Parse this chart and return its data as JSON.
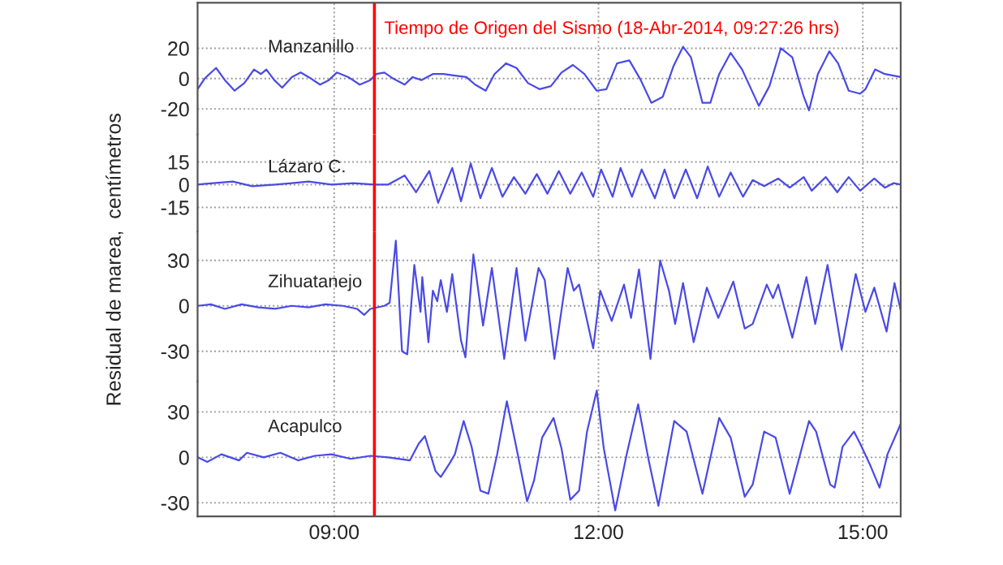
{
  "chart_data": [
    {
      "type": "line",
      "ylabel": "Residual de marea,  centímetros",
      "annotations": [
        "Manzanillo"
      ],
      "xlim": [
        7.45,
        15.43
      ],
      "xticks": [
        {
          "value": 9,
          "label": null
        },
        {
          "value": 12,
          "label": null
        },
        {
          "value": 15,
          "label": null
        }
      ],
      "ylim": [
        -37,
        50
      ],
      "yticks": [
        -20,
        0,
        20
      ],
      "tick_labels": "y",
      "grid": true,
      "ref_lines": [
        {
          "axis": "x",
          "value": 9.457,
          "label": "Tiempo de Origen del Sismo (18-Abr-2014, 09:27:26 hrs)",
          "color": "#ff0000"
        }
      ],
      "series": [
        {
          "color": "#4a4ae6",
          "x": [
            7.45,
            7.53,
            7.66,
            7.76,
            7.87,
            7.98,
            8.09,
            8.17,
            8.23,
            8.32,
            8.41,
            8.52,
            8.62,
            8.71,
            8.84,
            8.94,
            9.03,
            9.16,
            9.29,
            9.41,
            9.48,
            9.57,
            9.67,
            9.8,
            9.89,
            9.99,
            10.12,
            10.24,
            10.37,
            10.5,
            10.6,
            10.72,
            10.82,
            10.95,
            11.07,
            11.2,
            11.33,
            11.46,
            11.58,
            11.71,
            11.84,
            11.98,
            12.09,
            12.21,
            12.35,
            12.48,
            12.6,
            12.73,
            12.85,
            12.96,
            13.05,
            13.18,
            13.27,
            13.37,
            13.5,
            13.63,
            13.82,
            13.94,
            14.07,
            14.2,
            14.33,
            14.39,
            14.49,
            14.62,
            14.72,
            14.84,
            14.97,
            15.03,
            15.14,
            15.25,
            15.43
          ],
          "values": [
            -7,
            0,
            7,
            -1,
            -8,
            -3,
            6,
            3,
            6,
            -1,
            -6,
            1,
            4,
            1,
            -4,
            -1,
            4,
            1,
            -4,
            -1,
            3,
            4,
            0,
            -4,
            1,
            -1,
            3,
            3,
            2,
            1,
            -4,
            -8,
            3,
            10,
            7,
            -3,
            -7,
            -5,
            4,
            9,
            3,
            -8,
            -7,
            10,
            12,
            -1,
            -16,
            -12,
            8,
            21,
            14,
            -16,
            -16,
            3,
            17,
            6,
            -18,
            -5,
            20,
            14,
            -12,
            -21,
            3,
            18,
            10,
            -8,
            -10,
            -7,
            6,
            3,
            1
          ]
        }
      ]
    },
    {
      "type": "line",
      "annotations": [
        "Lázaro C."
      ],
      "xlim": [
        7.45,
        15.43
      ],
      "xticks": [
        {
          "value": 9,
          "label": null
        },
        {
          "value": 12,
          "label": null
        },
        {
          "value": 15,
          "label": null
        }
      ],
      "ylim": [
        -31,
        33
      ],
      "yticks": [
        -15,
        0,
        15
      ],
      "tick_labels": "y",
      "grid": true,
      "ref_lines": [
        {
          "axis": "x",
          "value": 9.457,
          "color": "#ff0000"
        }
      ],
      "series": [
        {
          "color": "#4a4ae6",
          "x": [
            7.45,
            7.63,
            7.85,
            8.07,
            8.33,
            8.52,
            8.71,
            8.97,
            9.22,
            9.45,
            9.61,
            9.8,
            9.93,
            10.08,
            10.18,
            10.34,
            10.44,
            10.55,
            10.66,
            10.79,
            10.91,
            11.04,
            11.17,
            11.3,
            11.42,
            11.55,
            11.68,
            11.81,
            11.94,
            12.03,
            12.16,
            12.25,
            12.38,
            12.49,
            12.64,
            12.75,
            12.86,
            12.99,
            13.12,
            13.24,
            13.37,
            13.5,
            13.64,
            13.75,
            13.88,
            14.04,
            14.17,
            14.33,
            14.42,
            14.58,
            14.71,
            14.84,
            14.97,
            15.13,
            15.25,
            15.35,
            15.43
          ],
          "values": [
            0,
            1,
            2,
            -1,
            0,
            1,
            2,
            0,
            1,
            0,
            0,
            6,
            -5,
            9,
            -12,
            11,
            -11,
            14,
            -9,
            11,
            -8,
            5,
            -6,
            7,
            -6,
            9,
            -6,
            8,
            -8,
            10,
            -8,
            11,
            -8,
            10,
            -9,
            10,
            -9,
            10,
            -9,
            12,
            -8,
            8,
            -8,
            3,
            -1,
            4,
            -2,
            5,
            -4,
            5,
            -5,
            5,
            -4,
            4,
            -2,
            1,
            0
          ]
        }
      ]
    },
    {
      "type": "line",
      "annotations": [
        "Zihuatanejo"
      ],
      "xlim": [
        7.45,
        15.43
      ],
      "xticks": [
        {
          "value": 9,
          "label": null
        },
        {
          "value": 12,
          "label": null
        },
        {
          "value": 15,
          "label": null
        }
      ],
      "ylim": [
        -50,
        49
      ],
      "yticks": [
        -30,
        0,
        30
      ],
      "tick_labels": "y",
      "grid": true,
      "ref_lines": [
        {
          "axis": "x",
          "value": 9.457,
          "color": "#ff0000"
        }
      ],
      "series": [
        {
          "color": "#4a4ae6",
          "x": [
            7.45,
            7.6,
            7.76,
            7.95,
            8.14,
            8.33,
            8.52,
            8.71,
            8.9,
            9.1,
            9.26,
            9.34,
            9.41,
            9.57,
            9.63,
            9.7,
            9.77,
            9.83,
            9.91,
            9.98,
            10.0,
            10.07,
            10.12,
            10.17,
            10.21,
            10.28,
            10.34,
            10.44,
            10.49,
            10.58,
            10.69,
            10.79,
            10.93,
            11.07,
            11.17,
            11.32,
            11.39,
            11.5,
            11.65,
            11.72,
            11.78,
            11.94,
            12.02,
            12.15,
            12.29,
            12.37,
            12.46,
            12.59,
            12.7,
            12.8,
            12.87,
            12.96,
            13.08,
            13.23,
            13.36,
            13.53,
            13.66,
            13.75,
            13.91,
            13.98,
            14.04,
            14.2,
            14.36,
            14.46,
            14.6,
            14.76,
            14.92,
            15.03,
            15.13,
            15.27,
            15.36,
            15.43
          ],
          "values": [
            0,
            1,
            -2,
            1,
            -1,
            -2,
            0,
            -1,
            1,
            0,
            -2,
            -6,
            -2,
            0,
            2,
            43,
            -30,
            -32,
            27,
            -4,
            19,
            -24,
            10,
            3,
            17,
            -4,
            21,
            -23,
            -34,
            34,
            -13,
            25,
            -35,
            25,
            -23,
            25,
            17,
            -35,
            25,
            10,
            14,
            -28,
            10,
            -10,
            14,
            -8,
            24,
            -35,
            30,
            10,
            -12,
            15,
            -24,
            12,
            -8,
            16,
            -15,
            -12,
            14,
            5,
            14,
            -21,
            19,
            -12,
            27,
            -29,
            21,
            -4,
            12,
            -17,
            15,
            -3
          ]
        }
      ]
    },
    {
      "type": "line",
      "annotations": [
        "Acapulco"
      ],
      "xlim": [
        7.45,
        15.43
      ],
      "xticks": [
        {
          "value": 9,
          "label": "09:00"
        },
        {
          "value": 12,
          "label": "12:00"
        },
        {
          "value": 15,
          "label": "15:00"
        }
      ],
      "ylim": [
        -39,
        50
      ],
      "yticks": [
        -30,
        0,
        30
      ],
      "grid": true,
      "ref_lines": [
        {
          "axis": "x",
          "value": 9.457,
          "color": "#ff0000"
        }
      ],
      "series": [
        {
          "color": "#4a4ae6",
          "x": [
            7.45,
            7.56,
            7.72,
            7.92,
            8.01,
            8.2,
            8.39,
            8.59,
            8.78,
            8.97,
            9.19,
            9.41,
            9.61,
            9.86,
            9.96,
            10.03,
            10.15,
            10.21,
            10.31,
            10.37,
            10.47,
            10.56,
            10.66,
            10.75,
            10.85,
            10.96,
            11.07,
            11.19,
            11.27,
            11.36,
            11.49,
            11.58,
            11.68,
            11.78,
            11.87,
            11.98,
            12.06,
            12.19,
            12.32,
            12.45,
            12.57,
            12.68,
            12.76,
            12.86,
            13.0,
            13.18,
            13.37,
            13.5,
            13.66,
            13.75,
            13.88,
            14.01,
            14.17,
            14.39,
            14.47,
            14.63,
            14.68,
            14.77,
            14.9,
            14.97,
            15.09,
            15.19,
            15.28,
            15.43
          ],
          "values": [
            0,
            -3,
            2,
            -2,
            3,
            0,
            3,
            -2,
            1,
            2,
            -1,
            1,
            0,
            -2,
            9,
            14,
            -9,
            -13,
            -4,
            2,
            24,
            7,
            -22,
            -24,
            2,
            37,
            6,
            -29,
            -15,
            13,
            26,
            6,
            -28,
            -22,
            17,
            44,
            6,
            -35,
            2,
            35,
            -2,
            -32,
            -7,
            24,
            17,
            -24,
            26,
            13,
            -26,
            -18,
            17,
            13,
            -24,
            24,
            17,
            -18,
            -20,
            7,
            17,
            9,
            -6,
            -20,
            2,
            22
          ]
        }
      ]
    }
  ]
}
